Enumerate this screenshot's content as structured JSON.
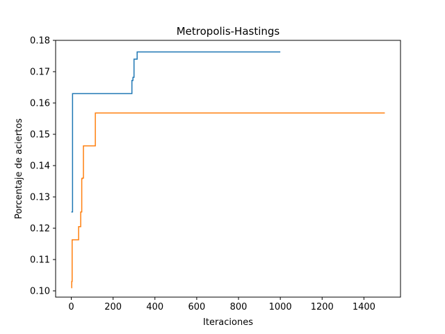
{
  "chart_data": {
    "type": "line",
    "title": "Metropolis-Hastings",
    "xlabel": "Iteraciones",
    "ylabel": "Porcentaje de aciertos",
    "xlim": [
      -75,
      1575
    ],
    "ylim": [
      0.098,
      0.18
    ],
    "xticks": [
      0,
      200,
      400,
      600,
      800,
      1000,
      1200,
      1400
    ],
    "yticks": [
      0.1,
      0.11,
      0.12,
      0.13,
      0.14,
      0.15,
      0.16,
      0.17,
      0.18
    ],
    "ytick_labels": [
      "0.10",
      "0.11",
      "0.12",
      "0.13",
      "0.14",
      "0.15",
      "0.16",
      "0.17",
      "0.18"
    ],
    "grid": false,
    "series": [
      {
        "color": "#1f77b4",
        "step": true,
        "x": [
          0,
          6,
          290,
          295,
          300,
          315,
          1000
        ],
        "y": [
          0.1252,
          0.163,
          0.1672,
          0.1682,
          0.174,
          0.1763,
          0.1763
        ]
      },
      {
        "color": "#ff7f0e",
        "step": true,
        "x": [
          0,
          2,
          4,
          35,
          45,
          50,
          52,
          58,
          115,
          1500
        ],
        "y": [
          0.101,
          0.103,
          0.1163,
          0.1205,
          0.1252,
          0.1358,
          0.136,
          0.1463,
          0.1568,
          0.1568
        ]
      }
    ]
  }
}
